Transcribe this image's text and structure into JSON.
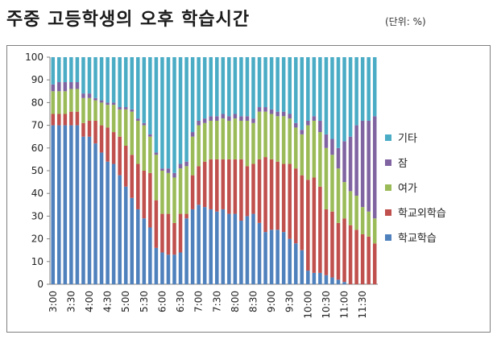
{
  "title": "주중 고등학생의 오후 학습시간",
  "unit_note": "(단위: %)",
  "chart_data": {
    "type": "bar",
    "stacked": true,
    "ylim": [
      0,
      100
    ],
    "yticks": [
      0,
      10,
      20,
      30,
      40,
      50,
      60,
      70,
      80,
      90,
      100
    ],
    "grid": false,
    "legend_position": "right",
    "categories": [
      "3:00",
      "3:10",
      "3:20",
      "3:30",
      "3:40",
      "3:50",
      "4:00",
      "4:10",
      "4:20",
      "4:30",
      "4:40",
      "4:50",
      "5:00",
      "5:10",
      "5:20",
      "5:30",
      "5:40",
      "5:50",
      "6:00",
      "6:10",
      "6:20",
      "6:30",
      "6:40",
      "6:50",
      "7:00",
      "7:10",
      "7:20",
      "7:30",
      "7:40",
      "7:50",
      "8:00",
      "8:10",
      "8:20",
      "8:30",
      "8:40",
      "8:50",
      "9:00",
      "9:10",
      "9:20",
      "9:30",
      "9:40",
      "9:50",
      "10:00",
      "10:10",
      "10:20",
      "10:30",
      "10:40",
      "10:50",
      "11:00",
      "11:10",
      "11:20",
      "11:30",
      "11:40",
      "11:50"
    ],
    "tick_labels": [
      "3:00",
      "3:30",
      "4:00",
      "4:30",
      "5:00",
      "5:30",
      "6:00",
      "6:30",
      "7:00",
      "7:30",
      "8:00",
      "8:30",
      "9:00",
      "9:30",
      "10:00",
      "10:30",
      "11:00",
      "11:30"
    ],
    "series": [
      {
        "name": "학교학습",
        "color": "#4f81bd",
        "values": [
          70,
          70,
          70,
          70,
          70,
          65,
          65,
          62,
          58,
          54,
          53,
          48,
          43,
          38,
          33,
          29,
          25,
          16,
          14,
          13,
          13,
          14,
          29,
          33,
          35,
          34,
          33,
          32,
          33,
          31,
          31,
          28,
          30,
          31,
          27,
          23,
          24,
          24,
          23,
          20,
          18,
          15,
          6,
          5,
          5,
          4,
          3,
          2,
          1,
          0,
          0,
          0,
          0,
          0
        ]
      },
      {
        "name": "학교외학습",
        "color": "#c0504d",
        "values": [
          5,
          5,
          5,
          6,
          6,
          6,
          7,
          10,
          12,
          15,
          14,
          17,
          18,
          19,
          20,
          21,
          24,
          21,
          17,
          18,
          14,
          17,
          2,
          15,
          17,
          20,
          22,
          23,
          22,
          24,
          24,
          27,
          22,
          22,
          28,
          33,
          31,
          30,
          30,
          33,
          33,
          33,
          40,
          42,
          38,
          29,
          29,
          25,
          28,
          26,
          24,
          22,
          21,
          18
        ]
      },
      {
        "name": "여가",
        "color": "#9bbb59",
        "values": [
          10,
          10,
          10,
          10,
          10,
          11,
          10,
          9,
          10,
          10,
          12,
          12,
          16,
          19,
          19,
          20,
          16,
          20,
          19,
          18,
          20,
          20,
          21,
          17,
          18,
          17,
          17,
          17,
          18,
          17,
          18,
          17,
          20,
          18,
          21,
          20,
          20,
          20,
          21,
          20,
          18,
          18,
          24,
          25,
          24,
          27,
          25,
          24,
          16,
          15,
          15,
          12,
          11,
          11
        ]
      },
      {
        "name": "잠",
        "color": "#8064a2",
        "values": [
          3,
          4,
          4,
          3,
          3,
          2,
          2,
          1,
          1,
          1,
          1,
          1,
          1,
          1,
          1,
          1,
          1,
          1,
          1,
          2,
          2,
          2,
          2,
          2,
          2,
          2,
          2,
          2,
          2,
          2,
          2,
          2,
          2,
          2,
          2,
          2,
          2,
          2,
          2,
          2,
          2,
          2,
          2,
          2,
          5,
          6,
          7,
          9,
          18,
          24,
          31,
          38,
          40,
          45
        ]
      },
      {
        "name": "기타",
        "color": "#4bacc6",
        "values": [
          12,
          11,
          11,
          11,
          11,
          16,
          16,
          18,
          19,
          20,
          20,
          22,
          22,
          23,
          27,
          29,
          34,
          42,
          49,
          49,
          51,
          47,
          46,
          33,
          28,
          27,
          26,
          26,
          25,
          26,
          25,
          26,
          26,
          27,
          22,
          22,
          23,
          24,
          24,
          25,
          29,
          32,
          28,
          26,
          28,
          34,
          36,
          40,
          37,
          35,
          30,
          28,
          28,
          26
        ]
      }
    ],
    "legend_order": [
      "기타",
      "잠",
      "여가",
      "학교외학습",
      "학교학습"
    ]
  }
}
